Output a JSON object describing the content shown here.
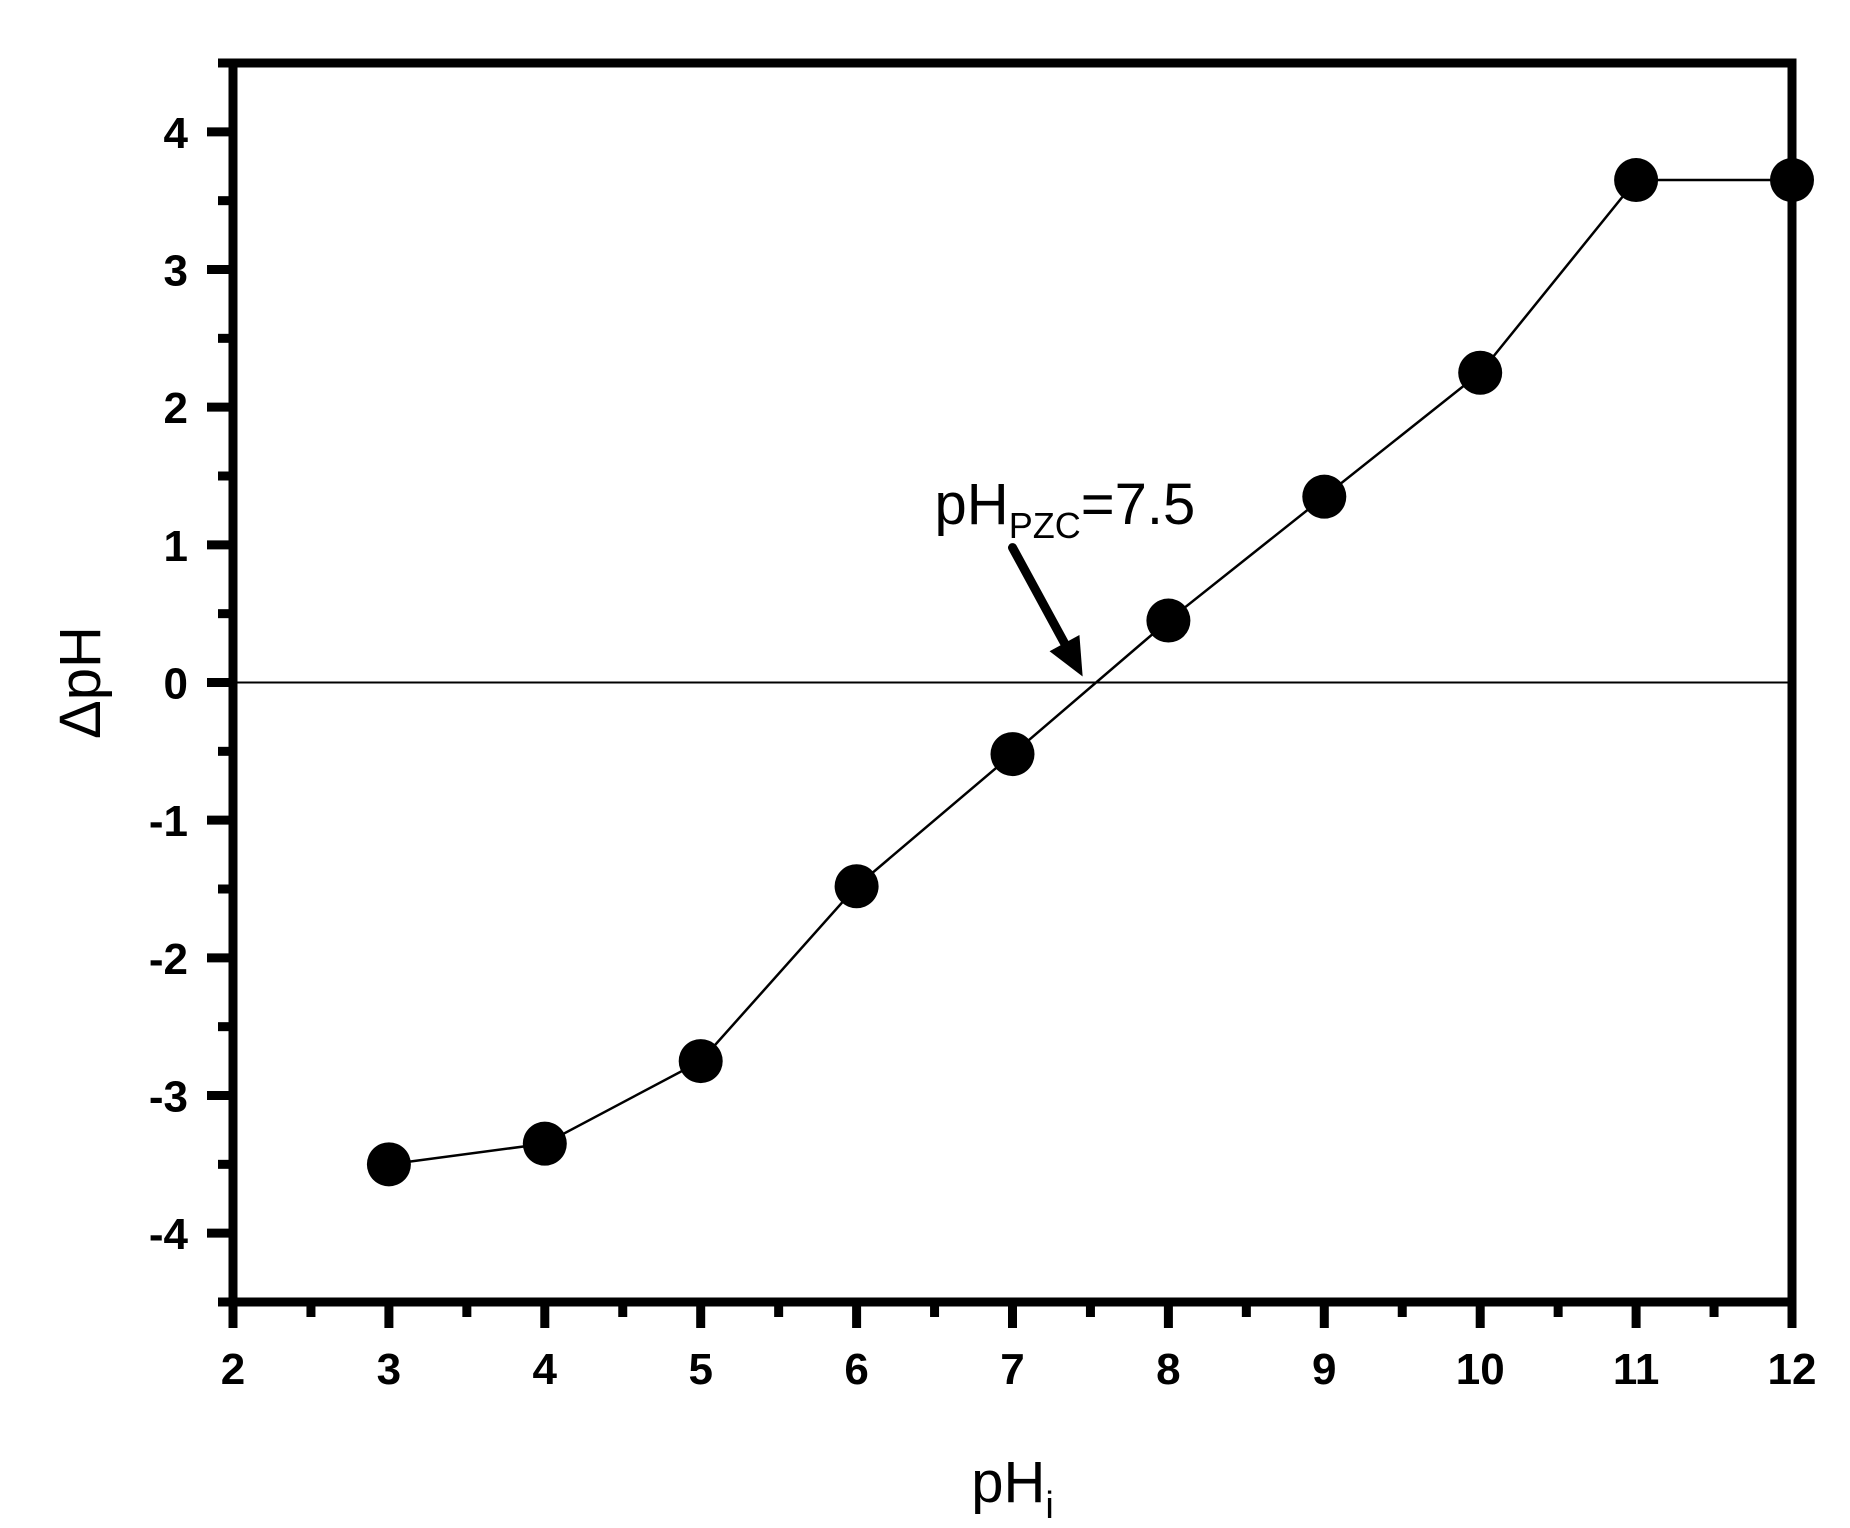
{
  "chart_data": {
    "type": "scatter",
    "title": "",
    "xlabel": {
      "main": "pH",
      "sub": "i"
    },
    "ylabel": "ΔpH",
    "xlim": [
      2,
      12
    ],
    "ylim": [
      -4.5,
      4.5
    ],
    "xticks": [
      2,
      3,
      4,
      5,
      6,
      7,
      8,
      9,
      10,
      11,
      12
    ],
    "yticks": [
      -4,
      -3,
      -2,
      -1,
      0,
      1,
      2,
      3,
      4
    ],
    "grid": false,
    "reference_line_y": 0,
    "series": [
      {
        "x": [
          3,
          4,
          5,
          6,
          7,
          8,
          9,
          10,
          11,
          12
        ],
        "y": [
          -3.5,
          -3.35,
          -2.75,
          -1.48,
          -0.52,
          0.45,
          1.35,
          2.25,
          3.65,
          3.65
        ],
        "marker": "circle",
        "line": true,
        "color": "#000000"
      }
    ],
    "annotation": {
      "main": "pH",
      "sub": "PZC",
      "rest": "=7.5",
      "arrow_target": [
        7.45,
        0
      ]
    }
  }
}
